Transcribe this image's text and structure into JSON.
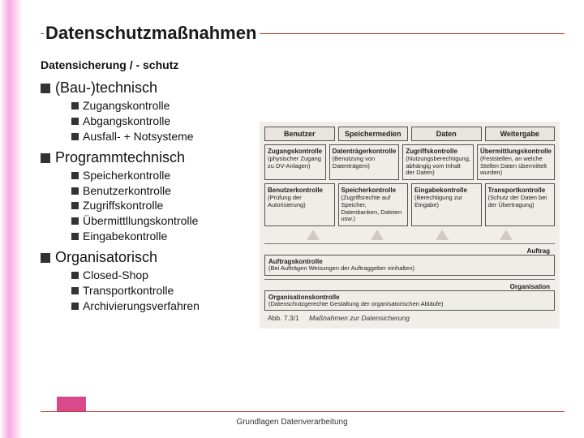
{
  "title": "Datenschutzmaßnahmen",
  "subtitle": "Datensicherung / - schutz",
  "footer": "Grundlagen Datenverarbeitung",
  "colors": {
    "rule": "#c0392b",
    "bullet": "#333333",
    "footer_tab": "#d94a8c",
    "left_gradient_mid": "#f8a8e0",
    "diagram_bg": "#f1eee9",
    "diagram_cell_bg": "#efede7",
    "diagram_border": "#555555",
    "triangle": "#cfcbc2"
  },
  "typography": {
    "title_fontsize": 22,
    "subtitle_fontsize": 14,
    "lvl1_fontsize": 18,
    "lvl2_fontsize": 14,
    "footer_fontsize": 10,
    "diagram_header_fontsize": 9,
    "diagram_cell_fontsize": 7.5
  },
  "outline": [
    {
      "label": "(Bau-)technisch",
      "items": [
        "Zugangskontrolle",
        "Abgangskontrolle",
        "Ausfall- + Notsysteme"
      ]
    },
    {
      "label": "Programmtechnisch",
      "items": [
        "Speicherkontrolle",
        "Benutzerkontrolle",
        "Zugriffskontrolle",
        "Übermittllungskontrolle",
        "Eingabekontrolle"
      ]
    },
    {
      "label": "Organisatorisch",
      "items": [
        "Closed-Shop",
        "Transportkontrolle",
        "Archivierungsverfahren"
      ]
    }
  ],
  "diagram": {
    "headers": [
      "Benutzer",
      "Speichermedien",
      "Daten",
      "Weitergabe"
    ],
    "row1": [
      {
        "title": "Zugangskontrolle",
        "text": "(physischer Zugang zu DV-Anlagen)"
      },
      {
        "title": "Datenträgerkontrolle",
        "text": "(Benutzung von Datenträgern)"
      },
      {
        "title": "Zugriffskontrolle",
        "text": "(Nutzungsberechtigung, abhängig vom Inhalt der Daten)"
      },
      {
        "title": "Übermittlungskontrolle",
        "text": "(Feststellen, an welche Stellen Daten übermittelt wurden)"
      }
    ],
    "row2": [
      {
        "title": "Benutzerkontrolle",
        "text": "(Prüfung der Autorisierung)"
      },
      {
        "title": "Speicherkontrolle",
        "text": "(Zugriffsrechte auf Speicher, Datenbanken, Dateien usw.)"
      },
      {
        "title": "Eingabekontrolle",
        "text": "(Berechtigung zur Eingabe)"
      },
      {
        "title": "Transportkontrolle",
        "text": "(Schutz der Daten bei der Übertragung)"
      }
    ],
    "super1": "Auftrag",
    "wide1": {
      "title": "Auftragskontrolle",
      "text": "(Bei Aufträgen Weisungen der Auftraggeber einhalten)"
    },
    "super2": "Organisation",
    "wide2": {
      "title": "Organisationskontrolle",
      "text": "(Datenschutzgerechte Gestaltung der organisatorischen Abläufe)"
    },
    "caption_label": "Abb. 7.3/1",
    "caption_text": "Maßnahmen zur Datensicherung"
  }
}
